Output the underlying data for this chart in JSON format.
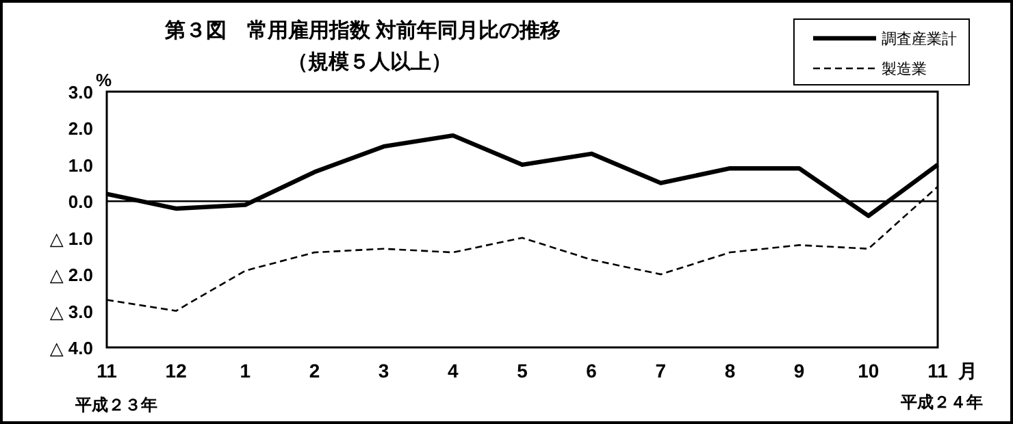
{
  "chart_data": {
    "type": "line",
    "title": "第３図　常用雇用指数 対前年同月比の推移",
    "subtitle": "（規模５人以上）",
    "xlabel": "月",
    "ylabel": "%",
    "categories": [
      "11",
      "12",
      "1",
      "2",
      "3",
      "4",
      "5",
      "6",
      "7",
      "8",
      "9",
      "10",
      "11"
    ],
    "series": [
      {
        "name": "調査産業計",
        "color": "#000000",
        "line_style": "solid",
        "values": [
          0.2,
          -0.2,
          -0.1,
          0.8,
          1.5,
          1.8,
          1.0,
          1.3,
          0.5,
          0.9,
          0.9,
          -0.4,
          1.0
        ]
      },
      {
        "name": "製造業",
        "color": "#000000",
        "line_style": "dashed",
        "values": [
          -2.7,
          -3.0,
          -1.9,
          -1.4,
          -1.3,
          -1.4,
          -1.0,
          -1.6,
          -2.0,
          -1.4,
          -1.2,
          -1.3,
          0.4
        ]
      }
    ],
    "ylim": [
      -4,
      3
    ],
    "yticks": [
      {
        "value": 3,
        "label": "3.0"
      },
      {
        "value": 2,
        "label": "2.0"
      },
      {
        "value": 1,
        "label": "1.0"
      },
      {
        "value": 0,
        "label": "0.0"
      },
      {
        "value": -1,
        "label": "△ 1.0"
      },
      {
        "value": -2,
        "label": "△ 2.0"
      },
      {
        "value": -3,
        "label": "△ 3.0"
      },
      {
        "value": -4,
        "label": "△ 4.0"
      }
    ],
    "ref_lines": [
      {
        "axis": "y",
        "value": 0,
        "color": "#000000"
      }
    ],
    "annotations": [
      "平成２３年",
      "平成２４年"
    ],
    "grid": false,
    "legend": "top right",
    "marker": "none"
  }
}
